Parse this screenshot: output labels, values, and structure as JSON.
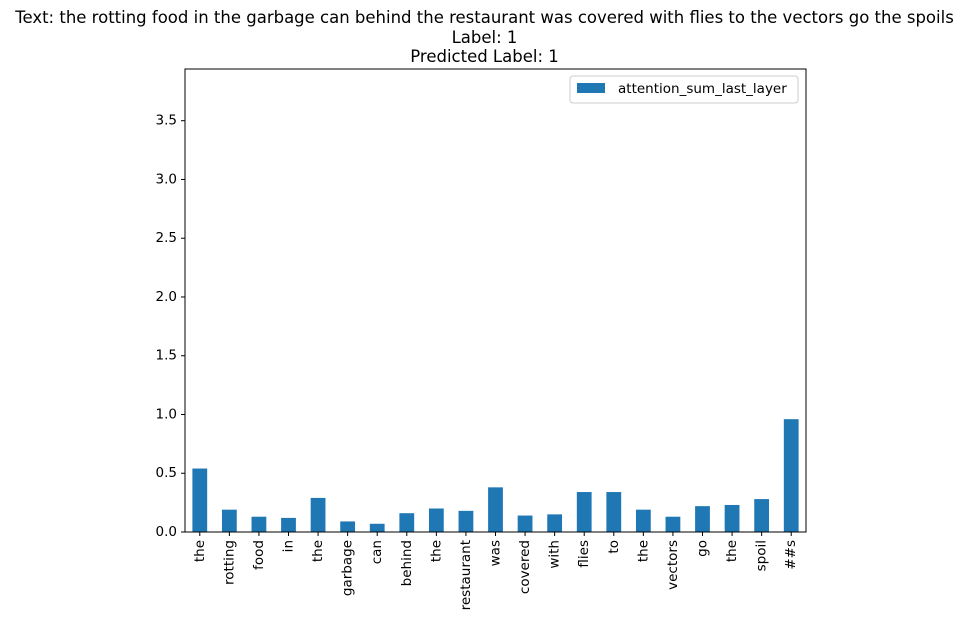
{
  "chart_data": {
    "type": "bar",
    "title_lines": [
      "Text: the rotting food in the garbage can behind the restaurant was covered with flies to the vectors go the spoils",
      "Label: 1",
      "Predicted Label: 1"
    ],
    "categories": [
      "the",
      "rotting",
      "food",
      "in",
      "the",
      "garbage",
      "can",
      "behind",
      "the",
      "restaurant",
      "was",
      "covered",
      "with",
      "flies",
      "to",
      "the",
      "vectors",
      "go",
      "the",
      "spoil",
      "##s"
    ],
    "series": [
      {
        "name": "attention_sum_last_layer",
        "color": "#1f77b4",
        "values": [
          0.54,
          0.19,
          0.13,
          0.12,
          0.29,
          0.09,
          0.07,
          0.16,
          0.2,
          0.18,
          0.38,
          0.14,
          0.15,
          0.34,
          0.34,
          0.19,
          0.13,
          0.22,
          0.23,
          0.28,
          0.96
        ]
      }
    ],
    "yticks": [
      "0.0",
      "0.5",
      "1.0",
      "1.5",
      "2.0",
      "2.5",
      "3.0",
      "3.5"
    ],
    "ylim": [
      0,
      3.94
    ],
    "xlabel": "",
    "ylabel": "",
    "legend_position": "top-right",
    "grid": false
  }
}
